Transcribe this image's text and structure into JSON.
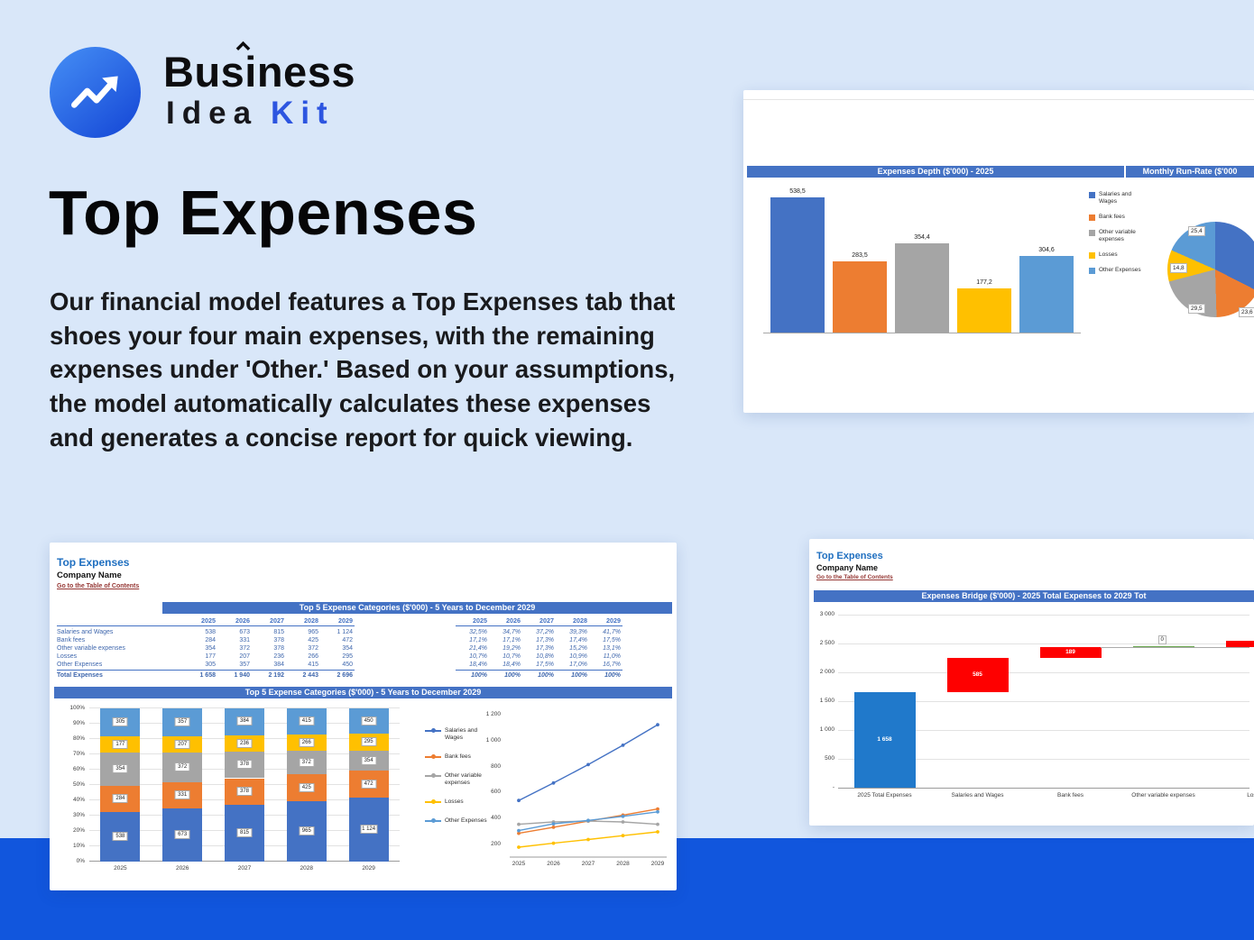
{
  "page": {
    "background": "#d9e7f9",
    "footer_color": "#1156dd"
  },
  "logo": {
    "line1": "Business",
    "line2_word1": "Idea",
    "line2_word2": "Kit",
    "accent": "#2d55e0"
  },
  "hero": {
    "title": "Top Expenses",
    "paragraph": "Our financial model features a Top Expenses tab that shoes your four main expenses, with the remaining expenses under 'Other.' Based on your assumptions, the model automatically calculates these expenses and generates a concise report for quick viewing."
  },
  "palette": {
    "excel_header": "#4472C4",
    "series_colors": [
      "#4472C4",
      "#ED7D31",
      "#A5A5A5",
      "#FFC000",
      "#5B9BD5"
    ],
    "waterfall_base": "#2079CB",
    "waterfall_delta": "#FE0000",
    "link_red": "#953734",
    "sheet_title_blue": "#1F6FC0"
  },
  "sheet_left": {
    "title": "Top Expenses",
    "company": "Company Name",
    "link": "Go to the Table of Contents",
    "table_header": "Top 5 Expense Categories ($'000) - 5 Years to December 2029",
    "chart_header": "Top 5 Expense Categories ($'000) - 5 Years to December 2029",
    "years": [
      "2025",
      "2026",
      "2027",
      "2028",
      "2029"
    ],
    "rows": [
      {
        "label": "Salaries and Wages",
        "values": [
          "538",
          "673",
          "815",
          "965",
          "1 124"
        ],
        "pcts": [
          "32,5%",
          "34,7%",
          "37,2%",
          "39,3%",
          "41,7%"
        ]
      },
      {
        "label": "Bank fees",
        "values": [
          "284",
          "331",
          "378",
          "425",
          "472"
        ],
        "pcts": [
          "17,1%",
          "17,1%",
          "17,3%",
          "17,4%",
          "17,5%"
        ]
      },
      {
        "label": "Other variable expenses",
        "values": [
          "354",
          "372",
          "378",
          "372",
          "354"
        ],
        "pcts": [
          "21,4%",
          "19,2%",
          "17,3%",
          "15,2%",
          "13,1%"
        ]
      },
      {
        "label": "Losses",
        "values": [
          "177",
          "207",
          "236",
          "266",
          "295"
        ],
        "pcts": [
          "10,7%",
          "10,7%",
          "10,8%",
          "10,9%",
          "11,0%"
        ]
      },
      {
        "label": "Other Expenses",
        "values": [
          "305",
          "357",
          "384",
          "415",
          "450"
        ],
        "pcts": [
          "18,4%",
          "18,4%",
          "17,5%",
          "17,0%",
          "16,7%"
        ]
      }
    ],
    "total_row": {
      "label": "Total Expenses",
      "values": [
        "1 658",
        "1 940",
        "2 192",
        "2 443",
        "2 696"
      ],
      "pcts": [
        "100%",
        "100%",
        "100%",
        "100%",
        "100%"
      ]
    }
  },
  "sheet_right": {
    "title": "Top Expenses",
    "company": "Company Name",
    "link": "Go to the Table of Contents",
    "chart_header": "Expenses Bridge ($'000) - 2025 Total Expenses to 2029 Tot"
  },
  "chart_data": [
    {
      "id": "expenses-depth",
      "type": "bar",
      "title": "Expenses Depth ($'000) - 2025",
      "categories": [
        "Salaries and Wages",
        "Bank fees",
        "Other variable expenses",
        "Losses",
        "Other Expenses"
      ],
      "values": [
        538.5,
        283.5,
        354.4,
        177.2,
        304.6
      ],
      "value_labels": [
        "538,5",
        "283,5",
        "354,4",
        "177,2",
        "304,6"
      ],
      "legend": [
        "Salaries and Wages",
        "Bank fees",
        "Other variable expenses",
        "Losses",
        "Other Expenses"
      ],
      "legend_position": "right",
      "ylim": [
        0,
        600
      ]
    },
    {
      "id": "monthly-run-rate",
      "type": "pie",
      "title": "Monthly Run-Rate ($'000",
      "labels": [
        "Salaries and Wages",
        "Bank fees",
        "Other variable expenses",
        "Losses",
        "Other Expenses"
      ],
      "values": [
        44.9,
        23.6,
        29.5,
        14.8,
        25.4
      ],
      "visible_value_labels": [
        "25,4",
        "14,8",
        "29,5",
        "23,6"
      ]
    },
    {
      "id": "top5-categories-stacked",
      "type": "bar",
      "stacked": true,
      "percent_axis": true,
      "title": "Top 5 Expense Categories ($'000) - 5 Years to December 2029",
      "categories": [
        "2025",
        "2026",
        "2027",
        "2028",
        "2029"
      ],
      "series": [
        {
          "name": "Salaries and Wages",
          "values": [
            538,
            673,
            815,
            965,
            1124
          ],
          "labels": [
            "538",
            "673",
            "815",
            "965",
            "1 124"
          ]
        },
        {
          "name": "Bank fees",
          "values": [
            284,
            331,
            378,
            425,
            472
          ],
          "labels": [
            "284",
            "331",
            "378",
            "425",
            "472"
          ]
        },
        {
          "name": "Other variable expenses",
          "values": [
            354,
            372,
            378,
            372,
            354
          ],
          "labels": [
            "354",
            "372",
            "378",
            "372",
            "354"
          ]
        },
        {
          "name": "Losses",
          "values": [
            177,
            207,
            236,
            266,
            295
          ],
          "labels": [
            "177",
            "207",
            "236",
            "266",
            "295"
          ]
        },
        {
          "name": "Other Expenses",
          "values": [
            305,
            357,
            384,
            415,
            450
          ],
          "labels": [
            "305",
            "357",
            "384",
            "415",
            "450"
          ]
        }
      ],
      "yticks": [
        "0%",
        "10%",
        "20%",
        "30%",
        "40%",
        "50%",
        "60%",
        "70%",
        "80%",
        "90%",
        "100%"
      ]
    },
    {
      "id": "top5-categories-lines",
      "type": "line",
      "categories": [
        "2025",
        "2026",
        "2027",
        "2028",
        "2029"
      ],
      "series": [
        {
          "name": "Salaries and Wages",
          "values": [
            538,
            673,
            815,
            965,
            1124
          ]
        },
        {
          "name": "Bank fees",
          "values": [
            284,
            331,
            378,
            425,
            472
          ]
        },
        {
          "name": "Other variable expenses",
          "values": [
            354,
            372,
            378,
            372,
            354
          ]
        },
        {
          "name": "Losses",
          "values": [
            177,
            207,
            236,
            266,
            295
          ]
        },
        {
          "name": "Other Expenses",
          "values": [
            305,
            357,
            384,
            415,
            450
          ]
        }
      ],
      "yticks": [
        "200",
        "400",
        "600",
        "800",
        "1 000",
        "1 200"
      ],
      "ylim": [
        0,
        1200
      ],
      "legend_position": "left"
    },
    {
      "id": "expenses-bridge",
      "type": "waterfall",
      "title": "Expenses Bridge ($'000) - 2025 Total Expenses to 2029 Tot",
      "categories": [
        "2025 Total Expenses",
        "Salaries and Wages",
        "Bank fees",
        "Other variable expenses",
        "Losses"
      ],
      "yticks": [
        "-",
        "500",
        "1 000",
        "1 500",
        "2 000",
        "2 500",
        "3 000"
      ],
      "ylim": [
        0,
        3000
      ],
      "bars": [
        {
          "label": "1 658",
          "start": 0,
          "end": 1658,
          "kind": "base"
        },
        {
          "label": "585",
          "start": 1658,
          "end": 2243,
          "kind": "delta"
        },
        {
          "label": "189",
          "start": 2243,
          "end": 2432,
          "kind": "delta"
        },
        {
          "label": "0",
          "start": 2432,
          "end": 2432,
          "kind": "zero"
        },
        {
          "label": "",
          "start": 2432,
          "end": 2550,
          "kind": "delta"
        }
      ]
    }
  ]
}
